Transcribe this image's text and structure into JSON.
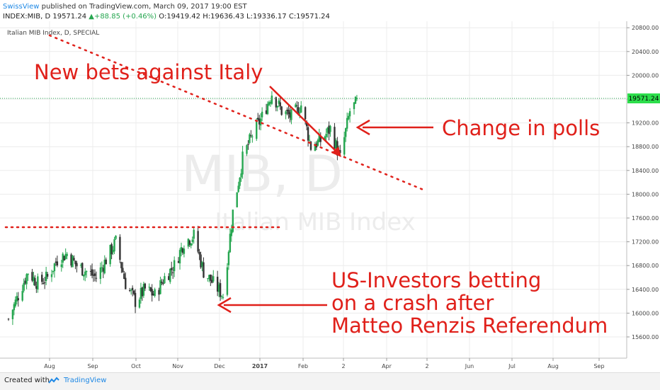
{
  "header": {
    "user": "SwissView",
    "published": " published on TradingView.com, March 09, 2017 19:00 EST",
    "symbol_line_prefix": "INDEX:MIB, D  19571.24 ",
    "change": "▲+88.85 (+0.46%)",
    "ohlc": " O:19419.42 H:19636.43 L:19336.17 C:19571.24"
  },
  "chart": {
    "pane_label": "Italian MIB Index, D, SPECIAL",
    "watermark_big": "MIB, D",
    "watermark_small": "Italian MIB Index",
    "last_price_label": "19571.24"
  },
  "annotations": {
    "top_left": "New bets against Italy",
    "right": "Change in polls",
    "bottom_line1": "US-Investors betting",
    "bottom_line2": "on a crash after",
    "bottom_line3": "Matteo Renzis Referendum"
  },
  "footer": {
    "created": "Created with",
    "brand": "TradingView"
  },
  "colors": {
    "up": "#26a650",
    "down": "#333333",
    "annotation": "#e0201a",
    "price_label_bg": "#2dde4c",
    "grid": "#ececec",
    "watermark": "#ececec"
  },
  "chart_data": {
    "type": "candlestick",
    "y_axis_ticks": [
      15600,
      16000,
      16400,
      16800,
      17200,
      17600,
      18000,
      18400,
      18800,
      19200,
      19600,
      20000,
      20400,
      20800
    ],
    "ylim": [
      15300,
      20900
    ],
    "x_axis_labels": [
      "Aug",
      "Sep",
      "Oct",
      "Nov",
      "Dec",
      "2017",
      "Feb",
      "2",
      "Apr",
      "2",
      "Jun",
      "Jul",
      "Aug",
      "Sep"
    ],
    "last_price": 19571.24,
    "series_close_approx": [
      [
        "2016-07-01",
        15900
      ],
      [
        "2016-07-08",
        16300
      ],
      [
        "2016-07-15",
        16700
      ],
      [
        "2016-07-22",
        16500
      ],
      [
        "2016-07-29",
        16600
      ],
      [
        "2016-08-05",
        16900
      ],
      [
        "2016-08-12",
        17000
      ],
      [
        "2016-08-19",
        16800
      ],
      [
        "2016-08-26",
        16700
      ],
      [
        "2016-09-02",
        16600
      ],
      [
        "2016-09-09",
        16900
      ],
      [
        "2016-09-16",
        17200
      ],
      [
        "2016-09-23",
        16500
      ],
      [
        "2016-09-30",
        16200
      ],
      [
        "2016-10-07",
        16400
      ],
      [
        "2016-10-14",
        16300
      ],
      [
        "2016-10-21",
        16600
      ],
      [
        "2016-10-28",
        16800
      ],
      [
        "2016-11-04",
        17200
      ],
      [
        "2016-11-11",
        17300
      ],
      [
        "2016-11-18",
        16700
      ],
      [
        "2016-11-25",
        16500
      ],
      [
        "2016-12-02",
        16300
      ],
      [
        "2016-12-09",
        17700
      ],
      [
        "2016-12-16",
        18600
      ],
      [
        "2016-12-23",
        19000
      ],
      [
        "2016-12-30",
        19300
      ],
      [
        "2017-01-06",
        19700
      ],
      [
        "2017-01-13",
        19400
      ],
      [
        "2017-01-20",
        19300
      ],
      [
        "2017-01-27",
        19500
      ],
      [
        "2017-02-03",
        18800
      ],
      [
        "2017-02-10",
        18900
      ],
      [
        "2017-02-17",
        19100
      ],
      [
        "2017-02-24",
        18600
      ],
      [
        "2017-03-03",
        19400
      ],
      [
        "2017-03-09",
        19571
      ]
    ]
  }
}
